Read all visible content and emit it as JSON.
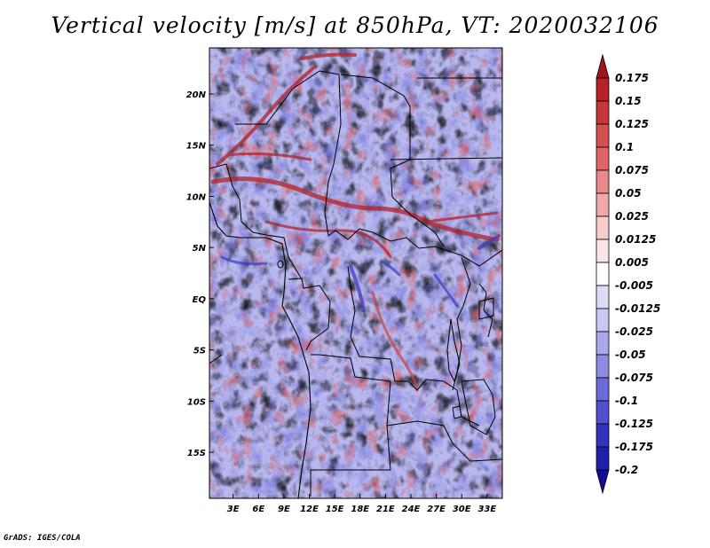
{
  "title": "Vertical velocity [m/s] at 850hPa, VT: 2020032106",
  "credit": "GrADS: IGES/COLA",
  "map": {
    "variable": "Vertical velocity",
    "units": "m/s",
    "level": "850hPa",
    "valid_time": "2020032106",
    "lat_labels": [
      "20N",
      "15N",
      "10N",
      "5N",
      "EQ",
      "5S",
      "10S",
      "15S"
    ],
    "lat_values": [
      20,
      15,
      10,
      5,
      0,
      -5,
      -10,
      -15
    ],
    "lon_labels": [
      "3E",
      "6E",
      "9E",
      "12E",
      "15E",
      "18E",
      "21E",
      "24E",
      "27E",
      "30E",
      "33E"
    ],
    "lon_values": [
      3,
      6,
      9,
      12,
      15,
      18,
      21,
      24,
      27,
      30,
      33
    ],
    "lat_range": [
      -19.5,
      24.5
    ],
    "lon_range": [
      0.2,
      34.8
    ]
  },
  "colorbar": {
    "labels": [
      "0.175",
      "0.15",
      "0.125",
      "0.1",
      "0.075",
      "0.05",
      "0.025",
      "0.0125",
      "0.005",
      "-0.005",
      "-0.0125",
      "-0.025",
      "-0.05",
      "-0.075",
      "-0.1",
      "-0.125",
      "-0.175",
      "-0.2"
    ],
    "colors": [
      "#a0141e",
      "#b62226",
      "#c83737",
      "#d65050",
      "#e06666",
      "#e88a8a",
      "#f0a8a8",
      "#f7cccc",
      "#fbe6e6",
      "#ffffff",
      "#dcdcf8",
      "#c8c8f2",
      "#a8a8ea",
      "#8c8ce2",
      "#6c6cd8",
      "#5050cc",
      "#3232bb",
      "#1e1eaa",
      "#120e96"
    ]
  }
}
